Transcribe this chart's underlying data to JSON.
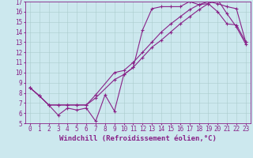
{
  "xlabel": "Windchill (Refroidissement éolien,°C)",
  "background_color": "#cce8ee",
  "line_color": "#882288",
  "xlim": [
    -0.5,
    23.5
  ],
  "ylim": [
    5,
    17
  ],
  "xticks": [
    0,
    1,
    2,
    3,
    4,
    5,
    6,
    7,
    8,
    9,
    10,
    11,
    12,
    13,
    14,
    15,
    16,
    17,
    18,
    19,
    20,
    21,
    22,
    23
  ],
  "yticks": [
    5,
    6,
    7,
    8,
    9,
    10,
    11,
    12,
    13,
    14,
    15,
    16,
    17
  ],
  "line1_x": [
    0,
    1,
    2,
    3,
    4,
    5,
    6,
    7,
    8,
    9,
    10,
    11,
    12,
    13,
    14,
    15,
    16,
    17,
    18,
    19,
    20,
    21,
    22,
    23
  ],
  "line1_y": [
    8.5,
    7.7,
    6.8,
    5.8,
    6.5,
    6.3,
    6.5,
    5.2,
    7.8,
    6.2,
    9.8,
    10.5,
    14.2,
    16.3,
    16.5,
    16.5,
    16.5,
    17.0,
    16.7,
    16.8,
    16.0,
    14.8,
    14.7,
    13.0
  ],
  "line2_x": [
    0,
    1,
    2,
    3,
    4,
    5,
    6,
    7,
    9,
    10,
    11,
    12,
    13,
    14,
    15,
    16,
    17,
    18,
    19,
    20,
    21,
    22,
    23
  ],
  "line2_y": [
    8.5,
    7.7,
    6.8,
    6.8,
    6.8,
    6.8,
    6.8,
    7.8,
    10.0,
    10.2,
    11.0,
    12.0,
    13.0,
    14.0,
    14.8,
    15.5,
    16.2,
    16.7,
    17.0,
    16.8,
    16.5,
    16.3,
    13.0
  ],
  "line3_x": [
    0,
    1,
    2,
    3,
    4,
    5,
    6,
    7,
    9,
    10,
    11,
    12,
    13,
    14,
    15,
    16,
    17,
    18,
    19,
    20,
    21,
    22,
    23
  ],
  "line3_y": [
    8.5,
    7.7,
    6.8,
    6.8,
    6.8,
    6.8,
    6.8,
    7.5,
    9.3,
    9.8,
    10.5,
    11.5,
    12.5,
    13.2,
    14.0,
    14.8,
    15.5,
    16.2,
    16.8,
    17.2,
    15.8,
    14.5,
    12.8
  ],
  "grid_color": "#aacccc",
  "font_color": "#882288",
  "fontsize_label": 6.5,
  "fontsize_tick": 5.5,
  "marker": "+",
  "markersize": 3,
  "linewidth": 0.8
}
